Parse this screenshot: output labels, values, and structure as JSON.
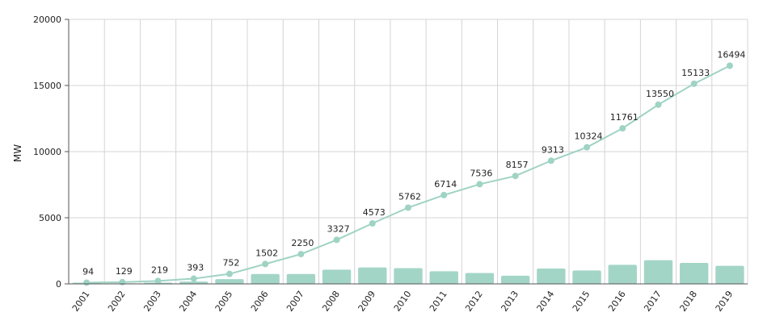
{
  "chart_data": {
    "type": "bar+line",
    "title": "",
    "xlabel": "",
    "ylabel": "MW",
    "ylim": [
      0,
      20000
    ],
    "yticks": [
      0,
      5000,
      10000,
      15000,
      20000
    ],
    "grid": true,
    "categories": [
      "2001",
      "2002",
      "2003",
      "2004",
      "2005",
      "2006",
      "2007",
      "2008",
      "2009",
      "2010",
      "2011",
      "2012",
      "2013",
      "2014",
      "2015",
      "2016",
      "2017",
      "2018",
      "2019"
    ],
    "series": [
      {
        "type": "bar",
        "values": [
          94,
          35,
          90,
          174,
          359,
          750,
          748,
          1077,
          1246,
          1189,
          952,
          822,
          621,
          1156,
          1011,
          1437,
          1789,
          1583,
          1361
        ]
      },
      {
        "type": "line",
        "values": [
          94,
          129,
          219,
          393,
          752,
          1502,
          2250,
          3327,
          4573,
          5762,
          6714,
          7536,
          8157,
          9313,
          10324,
          11761,
          13550,
          15133,
          16494
        ]
      }
    ],
    "colors": {
      "bar": "#a3d5c7",
      "line": "#9fd3c4",
      "grid": "#d4d4d4",
      "axis": "#555555",
      "text": "#222222"
    }
  }
}
